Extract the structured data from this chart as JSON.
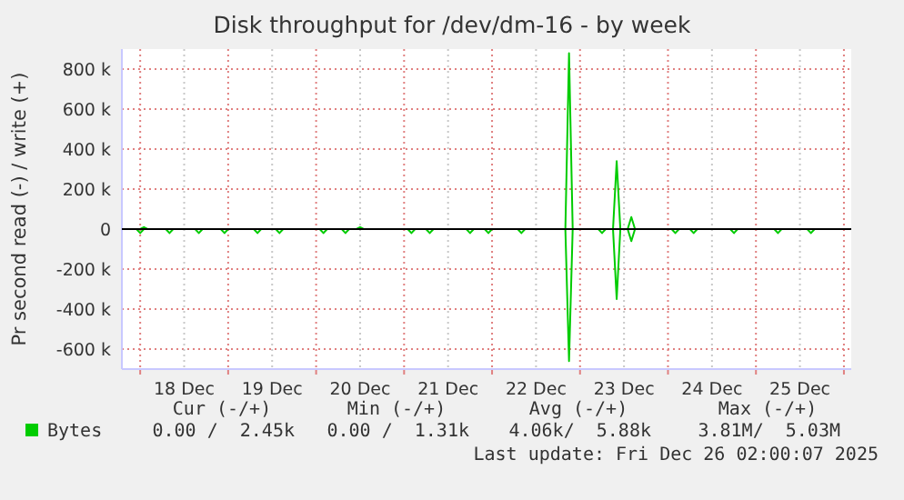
{
  "chart_data": {
    "type": "line",
    "title": "Disk throughput for /dev/dm-16 - by week",
    "ylabel": "Pr second read (-) / write (+)",
    "xlim": [
      "2025-12-17T19:00",
      "2025-12-26T02:00"
    ],
    "xticks": [
      {
        "value": "2025-12-18T00:00",
        "label": null
      },
      {
        "value": "2025-12-18T12:00",
        "label": "18 Dec"
      },
      {
        "value": "2025-12-19T00:00",
        "label": null
      },
      {
        "value": "2025-12-19T12:00",
        "label": "19 Dec"
      },
      {
        "value": "2025-12-20T00:00",
        "label": null
      },
      {
        "value": "2025-12-20T12:00",
        "label": "20 Dec"
      },
      {
        "value": "2025-12-21T00:00",
        "label": null
      },
      {
        "value": "2025-12-21T12:00",
        "label": "21 Dec"
      },
      {
        "value": "2025-12-22T00:00",
        "label": null
      },
      {
        "value": "2025-12-22T12:00",
        "label": "22 Dec"
      },
      {
        "value": "2025-12-23T00:00",
        "label": null
      },
      {
        "value": "2025-12-23T12:00",
        "label": "23 Dec"
      },
      {
        "value": "2025-12-24T00:00",
        "label": null
      },
      {
        "value": "2025-12-24T12:00",
        "label": "24 Dec"
      },
      {
        "value": "2025-12-25T00:00",
        "label": null
      },
      {
        "value": "2025-12-25T12:00",
        "label": "25 Dec"
      },
      {
        "value": "2025-12-26T00:00",
        "label": null
      }
    ],
    "ylim": [
      -700000,
      900000
    ],
    "yticks": [
      {
        "value": -600000,
        "label": "-600 k"
      },
      {
        "value": -400000,
        "label": "-400 k"
      },
      {
        "value": -200000,
        "label": "-200 k"
      },
      0,
      {
        "value": 200000,
        "label": "200 k"
      },
      {
        "value": 400000,
        "label": "400 k"
      },
      {
        "value": 600000,
        "label": "600 k"
      },
      {
        "value": 800000,
        "label": "800 k"
      }
    ],
    "grid": true,
    "legend": "bottom left",
    "line_style": "solid",
    "series": [
      {
        "name": "Bytes",
        "color": "#00cc00",
        "x": [
          "2025-12-17T19:00",
          "2025-12-18T00:00",
          "2025-12-18T01:00",
          "2025-12-18T02:00",
          "2025-12-20T11:00",
          "2025-12-20T12:00",
          "2025-12-20T13:00",
          "2025-12-22T20:00",
          "2025-12-22T21:00",
          "2025-12-22T22:00",
          "2025-12-23T09:00",
          "2025-12-23T10:00",
          "2025-12-23T11:00",
          "2025-12-23T13:00",
          "2025-12-23T14:00",
          "2025-12-23T15:00",
          "2025-12-26T02:00"
        ],
        "values": [
          0,
          0,
          10000,
          0,
          0,
          10000,
          0,
          0,
          880000,
          0,
          0,
          340000,
          0,
          0,
          60000,
          0,
          0
        ]
      },
      {
        "color": "#00cc00",
        "x": [
          "2025-12-17T19:00",
          "2025-12-17T23:00",
          "2025-12-18T00:00",
          "2025-12-18T01:00",
          "2025-12-18T07:00",
          "2025-12-18T08:00",
          "2025-12-18T09:00",
          "2025-12-18T15:00",
          "2025-12-18T16:00",
          "2025-12-18T17:00",
          "2025-12-18T22:00",
          "2025-12-18T23:00",
          "2025-12-19T00:00",
          "2025-12-19T07:00",
          "2025-12-19T08:00",
          "2025-12-19T09:00",
          "2025-12-19T13:00",
          "2025-12-19T14:00",
          "2025-12-19T15:00",
          "2025-12-20T01:00",
          "2025-12-20T02:00",
          "2025-12-20T03:00",
          "2025-12-20T07:00",
          "2025-12-20T08:00",
          "2025-12-20T09:00",
          "2025-12-21T01:00",
          "2025-12-21T02:00",
          "2025-12-21T03:00",
          "2025-12-21T06:00",
          "2025-12-21T07:00",
          "2025-12-21T08:00",
          "2025-12-21T17:00",
          "2025-12-21T18:00",
          "2025-12-21T19:00",
          "2025-12-21T22:00",
          "2025-12-21T23:00",
          "2025-12-22T00:00",
          "2025-12-22T07:00",
          "2025-12-22T08:00",
          "2025-12-22T09:00",
          "2025-12-22T20:00",
          "2025-12-22T21:00",
          "2025-12-22T22:00",
          "2025-12-23T05:00",
          "2025-12-23T06:00",
          "2025-12-23T07:00",
          "2025-12-23T09:00",
          "2025-12-23T10:00",
          "2025-12-23T11:00",
          "2025-12-23T13:00",
          "2025-12-23T14:00",
          "2025-12-23T15:00",
          "2025-12-24T01:00",
          "2025-12-24T02:00",
          "2025-12-24T03:00",
          "2025-12-24T06:00",
          "2025-12-24T07:00",
          "2025-12-24T08:00",
          "2025-12-24T17:00",
          "2025-12-24T18:00",
          "2025-12-24T19:00",
          "2025-12-25T05:00",
          "2025-12-25T06:00",
          "2025-12-25T07:00",
          "2025-12-25T14:00",
          "2025-12-25T15:00",
          "2025-12-25T16:00",
          "2025-12-26T02:00"
        ],
        "values": [
          0,
          0,
          -20000,
          0,
          0,
          -20000,
          0,
          0,
          -20000,
          0,
          0,
          -20000,
          0,
          0,
          -20000,
          0,
          0,
          -20000,
          0,
          0,
          -20000,
          0,
          0,
          -20000,
          0,
          0,
          -20000,
          0,
          0,
          -20000,
          0,
          0,
          -20000,
          0,
          0,
          -20000,
          0,
          0,
          -20000,
          0,
          0,
          -660000,
          0,
          0,
          -20000,
          0,
          0,
          -350000,
          0,
          0,
          -60000,
          0,
          0,
          -20000,
          0,
          0,
          -20000,
          0,
          0,
          -20000,
          0,
          0,
          -20000,
          0,
          0,
          -20000,
          0,
          0
        ]
      }
    ],
    "annotations": [
      "Cur (-/+)",
      "Min (-/+)",
      "Avg (-/+)",
      "Max (-/+)",
      "0.00 /  2.45k",
      "0.00 /  1.31k",
      "4.06k/  5.88k",
      "3.81M/  5.03M",
      "Last update: Fri Dec 26 02:00:07 2025"
    ]
  }
}
